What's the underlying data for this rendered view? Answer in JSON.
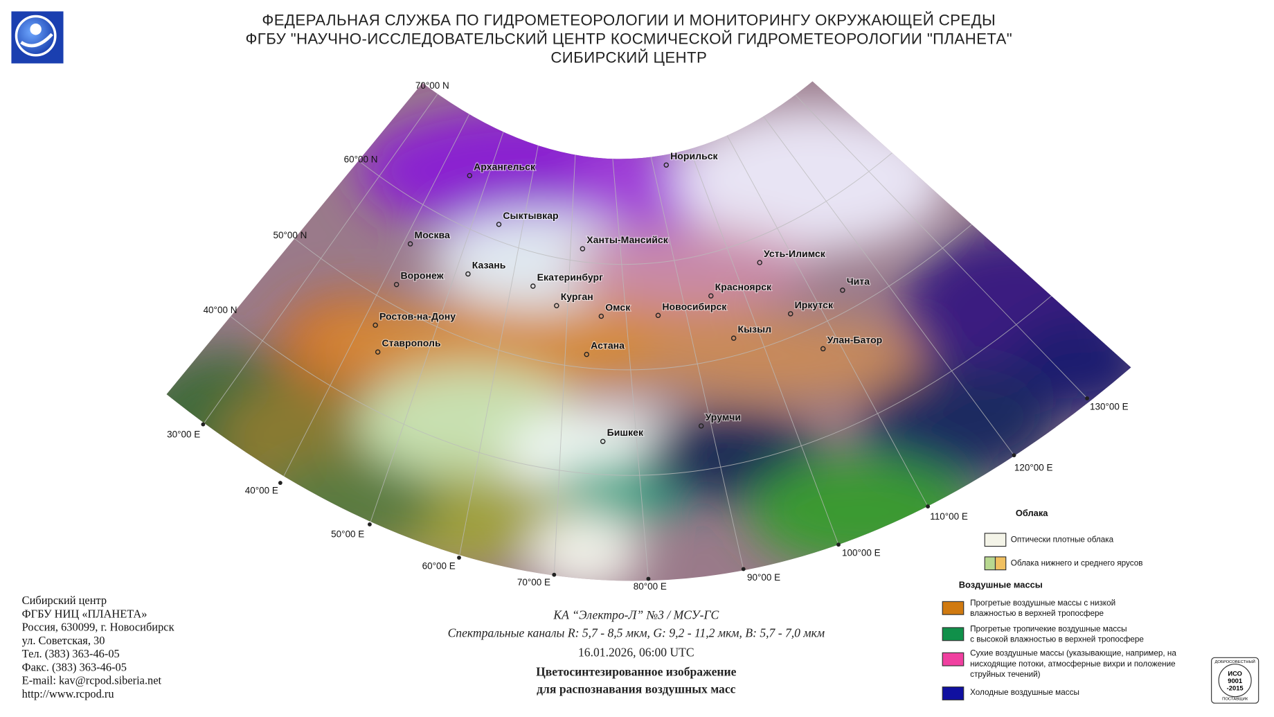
{
  "header": {
    "lines": [
      "ФЕДЕРАЛЬНАЯ СЛУЖБА ПО ГИДРОМЕТЕОРОЛОГИИ И МОНИТОРИНГУ ОКРУЖАЮЩЕЙ СРЕДЫ",
      "ФГБУ \"НАУЧНО-ИССЛЕДОВАТЕЛЬСКИЙ ЦЕНТР КОСМИЧЕСКОЙ ГИДРОМЕТЕОРОЛОГИИ \"ПЛАНЕТА\"",
      "СИБИРСКИЙ ЦЕНТР"
    ]
  },
  "map": {
    "lat_labels": [
      "70°00 N",
      "60°00 N",
      "50°00 N",
      "40°00 N"
    ],
    "lon_labels": [
      "30°00 E",
      "40°00 E",
      "50°00 E",
      "60°00 E",
      "70°00 E",
      "80°00 E",
      "90°00 E",
      "100°00 E",
      "110°00 E",
      "120°00 E",
      "130°00 E"
    ],
    "cities": [
      "Архангельск",
      "Норильск",
      "Сыктывкар",
      "Москва",
      "Ханты-Мансийск",
      "Усть-Илимск",
      "Казань",
      "Воронеж",
      "Екатеринбург",
      "Красноярск",
      "Чита",
      "Курган",
      "Омск",
      "Новосибирск",
      "Иркутск",
      "Ростов-на-Дону",
      "Кызыл",
      "Ставрополь",
      "Улан-Батор",
      "Астана",
      "Урумчи",
      "Бишкек"
    ]
  },
  "legend": {
    "clouds_title": "Облака",
    "clouds": [
      "Оптически плотные облака",
      "Облака нижнего и среднего ярусов"
    ],
    "air_title": "Воздушные массы",
    "air": [
      [
        "Прогретые воздушные массы с низкой",
        "влажностью в верхней тропосфере"
      ],
      [
        "Прогретые тропичекие воздушные массы",
        "с высокой влажностью в верхней тропосфере"
      ],
      [
        "Сухие воздушные массы (указывающие, например, на",
        "нисходящие потоки, атмосферные вихри и положение",
        "струйных течений)"
      ],
      [
        "Холодные воздушные массы"
      ]
    ]
  },
  "caption": {
    "satellite": "КА “Электро-Л” №3 / МСУ-ГС",
    "channels": "Спектральные каналы R: 5,7 - 8,5 мкм, G: 9,2 - 11,2 мкм, B: 5,7 - 7,0 мкм",
    "datetime": "16.01.2026, 06:00 UTC",
    "title": [
      "Цветосинтезированное изображение",
      "для распознавания воздушных масс"
    ]
  },
  "footer": [
    "Сибирский центр",
    "ФГБУ НИЦ «ПЛАНЕТА»",
    "Россия, 630099, г. Новосибирск",
    "ул. Советская, 30",
    "Тел. (383) 363-46-05",
    "Факс. (383) 363-46-05",
    "E-mail: kav@rcpod.siberia.net",
    "http://www.rcpod.ru"
  ],
  "iso": {
    "top": "ДОБРОСОВЕСТНЫЙ",
    "lines": [
      "ИСО",
      "9001",
      "-2015"
    ],
    "bottom": "ПОСТАВЩИК"
  }
}
